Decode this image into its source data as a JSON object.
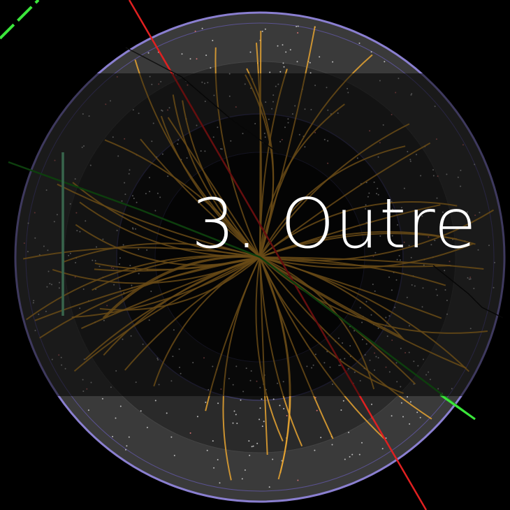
{
  "overlay": {
    "text": "3. Outre"
  }
}
